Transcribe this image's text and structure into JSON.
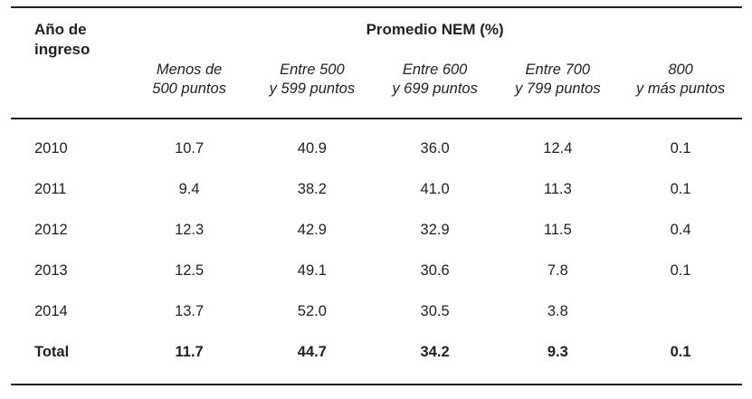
{
  "colors": {
    "text": "#231f20",
    "rule": "#1f1f1f"
  },
  "table": {
    "row_header": {
      "line1": "Año de",
      "line2": "ingreso"
    },
    "group_header": "Promedio NEM (%)",
    "columns": [
      {
        "line1": "Menos de",
        "line2": "500 puntos"
      },
      {
        "line1": "Entre 500",
        "line2": "y 599 puntos"
      },
      {
        "line1": "Entre 600",
        "line2": "y 699 puntos"
      },
      {
        "line1": "Entre 700",
        "line2": "y 799 puntos"
      },
      {
        "line1": "800",
        "line2": "y más puntos"
      }
    ],
    "rows": [
      {
        "label": "2010",
        "bold": false,
        "values": [
          "10.7",
          "40.9",
          "36.0",
          "12.4",
          "0.1"
        ]
      },
      {
        "label": "2011",
        "bold": false,
        "values": [
          "9.4",
          "38.2",
          "41.0",
          "11.3",
          "0.1"
        ]
      },
      {
        "label": "2012",
        "bold": false,
        "values": [
          "12.3",
          "42.9",
          "32.9",
          "11.5",
          "0.4"
        ]
      },
      {
        "label": "2013",
        "bold": false,
        "values": [
          "12.5",
          "49.1",
          "30.6",
          "7.8",
          "0.1"
        ]
      },
      {
        "label": "2014",
        "bold": false,
        "values": [
          "13.7",
          "52.0",
          "30.5",
          "3.8",
          ""
        ]
      },
      {
        "label": "Total",
        "bold": true,
        "values": [
          "11.7",
          "44.7",
          "34.2",
          "9.3",
          "0.1"
        ]
      }
    ]
  }
}
